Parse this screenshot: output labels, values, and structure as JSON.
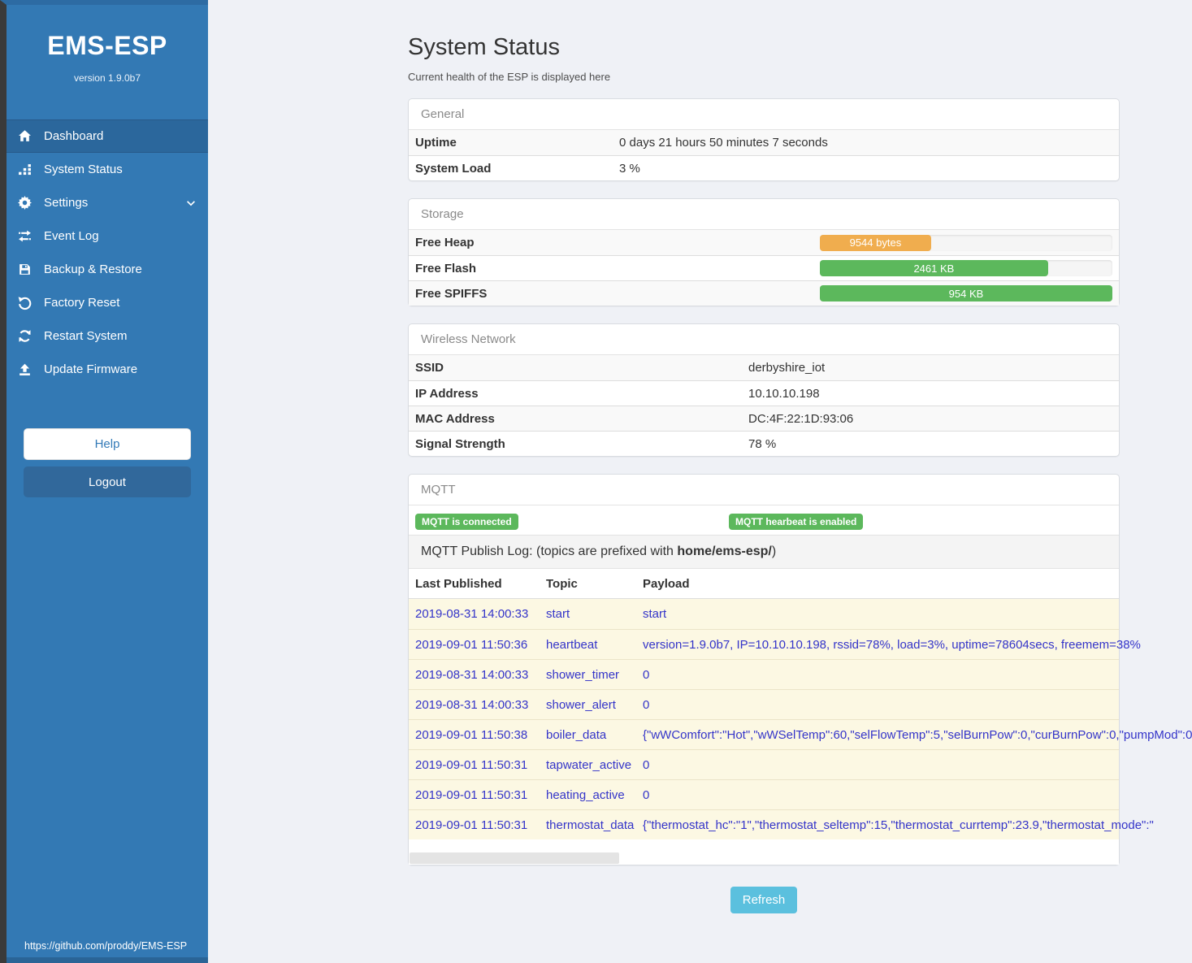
{
  "sidebar": {
    "title": "EMS-ESP",
    "version": "version 1.9.0b7",
    "menu": [
      {
        "label": "Dashboard",
        "icon": "home-icon",
        "active": true
      },
      {
        "label": "System Status",
        "icon": "status-bars-icon"
      },
      {
        "label": "Settings",
        "icon": "gear-icon",
        "chevron": true
      },
      {
        "label": "Event Log",
        "icon": "transfer-arrows-icon"
      },
      {
        "label": "Backup & Restore",
        "icon": "save-icon"
      },
      {
        "label": "Factory Reset",
        "icon": "undo-icon"
      },
      {
        "label": "Restart System",
        "icon": "refresh-icon"
      },
      {
        "label": "Update Firmware",
        "icon": "upload-icon"
      }
    ],
    "help_label": "Help",
    "logout_label": "Logout",
    "footer_link": "https://github.com/proddy/EMS-ESP"
  },
  "page": {
    "title": "System Status",
    "subtitle": "Current health of the ESP is displayed here"
  },
  "general": {
    "header": "General",
    "rows": [
      [
        "Uptime",
        "0 days 21 hours 50 minutes 7 seconds"
      ],
      [
        "System Load",
        "3 %"
      ]
    ]
  },
  "storage": {
    "header": "Storage",
    "rows": [
      {
        "label": "Free Heap",
        "value": "9544 bytes",
        "percent": 38,
        "color": "#f0ad4e"
      },
      {
        "label": "Free Flash",
        "value": "2461 KB",
        "percent": 78,
        "color": "#5cb85c"
      },
      {
        "label": "Free SPIFFS",
        "value": "954 KB",
        "percent": 100,
        "color": "#5cb85c"
      }
    ]
  },
  "wireless": {
    "header": "Wireless Network",
    "rows": [
      [
        "SSID",
        "derbyshire_iot"
      ],
      [
        "IP Address",
        "10.10.10.198"
      ],
      [
        "MAC Address",
        "DC:4F:22:1D:93:06"
      ],
      [
        "Signal Strength",
        "78 %"
      ]
    ]
  },
  "mqtt": {
    "header": "MQTT",
    "badges": [
      "MQTT is connected",
      "MQTT hearbeat is enabled"
    ],
    "publish_log": {
      "text_before": "MQTT Publish Log: (topics are prefixed with ",
      "bold": "home/ems-esp/",
      "text_after": ")"
    },
    "table": {
      "headers": [
        "Last Published",
        "Topic",
        "Payload"
      ],
      "rows": [
        {
          "published": "2019-08-31 14:00:33",
          "topic": "start",
          "payload": "start"
        },
        {
          "published": "2019-09-01 11:50:36",
          "topic": "heartbeat",
          "payload": "version=1.9.0b7, IP=10.10.10.198, rssid=78%, load=3%, uptime=78604secs, freemem=38%"
        },
        {
          "published": "2019-08-31 14:00:33",
          "topic": "shower_timer",
          "payload": "0"
        },
        {
          "published": "2019-08-31 14:00:33",
          "topic": "shower_alert",
          "payload": "0"
        },
        {
          "published": "2019-09-01 11:50:38",
          "topic": "boiler_data",
          "payload": "{\"wWComfort\":\"Hot\",\"wWSelTemp\":60,\"selFlowTemp\":5,\"selBurnPow\":0,\"curBurnPow\":0,\"pumpMod\":0"
        },
        {
          "published": "2019-09-01 11:50:31",
          "topic": "tapwater_active",
          "payload": "0"
        },
        {
          "published": "2019-09-01 11:50:31",
          "topic": "heating_active",
          "payload": "0"
        },
        {
          "published": "2019-09-01 11:50:31",
          "topic": "thermostat_data",
          "payload": "{\"thermostat_hc\":\"1\",\"thermostat_seltemp\":15,\"thermostat_currtemp\":23.9,\"thermostat_mode\":\""
        }
      ]
    }
  },
  "refresh_label": "Refresh",
  "colors": {
    "sidebar": "#3379b4",
    "sidebar_active": "#2b679c",
    "badge_green": "#5cb85c",
    "bar_orange": "#f0ad4e",
    "bar_green": "#5cb85c",
    "log_row_bg": "#fcf8e3",
    "log_text": "#3434c9",
    "refresh_button": "#5bc0de"
  }
}
